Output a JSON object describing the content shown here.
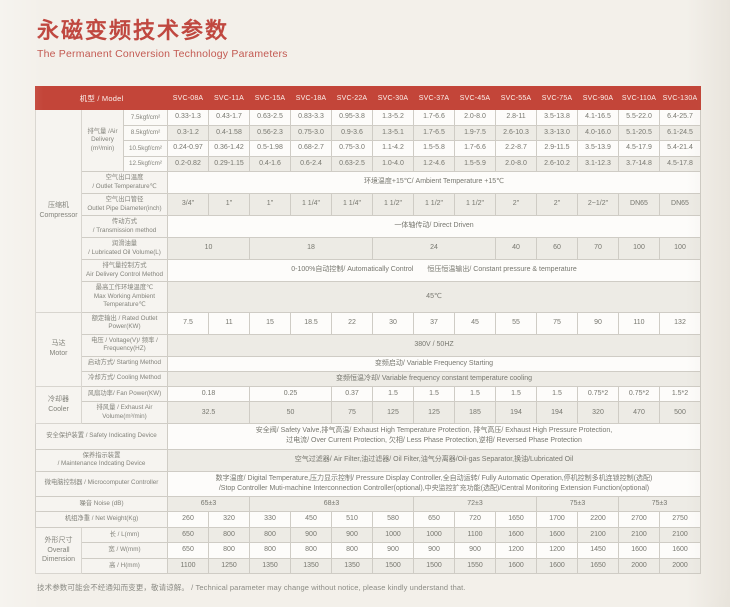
{
  "page": {
    "title_zh": "永磁变频技术参数",
    "title_en": "The Permanent Conversion Technology Parameters",
    "footer": "技术参数可能会不经通知而变更，敬请谅解。 / Technical parameter may change without notice, please kindly understand that."
  },
  "colors": {
    "header_red": "#c34539",
    "title_red": "#c04840",
    "cell_border": "#cfccc5",
    "shaded_row": "#edebe5",
    "page_bg": "#f3f0ea"
  },
  "table": {
    "corner_label": "机型 / Model",
    "models": [
      "SVC-08A",
      "SVC-11A",
      "SVC-15A",
      "SVC-18A",
      "SVC-22A",
      "SVC-30A",
      "SVC-37A",
      "SVC-45A",
      "SVC-55A",
      "SVC-75A",
      "SVC-90A",
      "SVC-110A",
      "SVC-130A"
    ],
    "rows": [
      [
        {
          "t": "压缩机\nCompressor",
          "k": "g",
          "rs": 10
        },
        {
          "t": "排气量 /Air\nDelivery\n(m³/min)",
          "k": "l",
          "rs": 4
        },
        {
          "t": "7.5kgf/cm²",
          "k": "s"
        },
        {
          "t": "0.33-1.3"
        },
        {
          "t": "0.43-1.7"
        },
        {
          "t": "0.63-2.5"
        },
        {
          "t": "0.83-3.3"
        },
        {
          "t": "0.95-3.8"
        },
        {
          "t": "1.3-5.2"
        },
        {
          "t": "1.7-6.6"
        },
        {
          "t": "2.0-8.0"
        },
        {
          "t": "2.8-11"
        },
        {
          "t": "3.5-13.8"
        },
        {
          "t": "4.1-16.5"
        },
        {
          "t": "5.5-22.0"
        },
        {
          "t": "6.4-25.7"
        }
      ],
      [
        {
          "t": "8.5kgf/cm²",
          "k": "s"
        },
        {
          "t": "0.3-1.2"
        },
        {
          "t": "0.4-1.58"
        },
        {
          "t": "0.56-2.3"
        },
        {
          "t": "0.75-3.0"
        },
        {
          "t": "0.9-3.6"
        },
        {
          "t": "1.3-5.1"
        },
        {
          "t": "1.7-6.5"
        },
        {
          "t": "1.9-7.5"
        },
        {
          "t": "2.6-10.3"
        },
        {
          "t": "3.3-13.0"
        },
        {
          "t": "4.0-16.0"
        },
        {
          "t": "5.1-20.5"
        },
        {
          "t": "6.1-24.5"
        }
      ],
      [
        {
          "t": "10.5kgf/cm²",
          "k": "s"
        },
        {
          "t": "0.24-0.97"
        },
        {
          "t": "0.36-1.42"
        },
        {
          "t": "0.5-1.98"
        },
        {
          "t": "0.68-2.7"
        },
        {
          "t": "0.75-3.0"
        },
        {
          "t": "1.1-4.2"
        },
        {
          "t": "1.5-5.8"
        },
        {
          "t": "1.7-6.6"
        },
        {
          "t": "2.2-8.7"
        },
        {
          "t": "2.9-11.5"
        },
        {
          "t": "3.5-13.9"
        },
        {
          "t": "4.5-17.9"
        },
        {
          "t": "5.4-21.4"
        }
      ],
      [
        {
          "t": "12.5kgf/cm²",
          "k": "s"
        },
        {
          "t": "0.2-0.82"
        },
        {
          "t": "0.29-1.15"
        },
        {
          "t": "0.4-1.6"
        },
        {
          "t": "0.6-2.4"
        },
        {
          "t": "0.63-2.5"
        },
        {
          "t": "1.0-4.0"
        },
        {
          "t": "1.2-4.6"
        },
        {
          "t": "1.5-5.9"
        },
        {
          "t": "2.0-8.0"
        },
        {
          "t": "2.6-10.2"
        },
        {
          "t": "3.1-12.3"
        },
        {
          "t": "3.7-14.8"
        },
        {
          "t": "4.5-17.8"
        }
      ],
      [
        {
          "t": "空气出口温度\n/ Outlet Temperature℃",
          "k": "l",
          "cs": 2
        },
        {
          "t": "环境温度+15℃/ Ambient Temperature +15℃",
          "k": "w",
          "cs": 13
        }
      ],
      [
        {
          "t": "空气出口管径\nOutlet Pipe Diameter(inch)",
          "k": "l",
          "cs": 2
        },
        {
          "t": "3/4\""
        },
        {
          "t": "1\""
        },
        {
          "t": "1\""
        },
        {
          "t": "1 1/4\""
        },
        {
          "t": "1 1/4\""
        },
        {
          "t": "1 1/2\""
        },
        {
          "t": "1 1/2\""
        },
        {
          "t": "1 1/2\""
        },
        {
          "t": "2\""
        },
        {
          "t": "2\""
        },
        {
          "t": "2~1/2\""
        },
        {
          "t": "DN65"
        },
        {
          "t": "DN65"
        }
      ],
      [
        {
          "t": "传动方式\n/ Transmission method",
          "k": "l",
          "cs": 2
        },
        {
          "t": "一体轴传动/ Direct Driven",
          "k": "w",
          "cs": 13
        }
      ],
      [
        {
          "t": "润滑油量\n/ Lubricated Oil Volume(L)",
          "k": "l",
          "cs": 2
        },
        {
          "t": "10",
          "cs": 2
        },
        {
          "t": "18",
          "cs": 3
        },
        {
          "t": "24",
          "cs": 3
        },
        {
          "t": "40"
        },
        {
          "t": "60"
        },
        {
          "t": "70"
        },
        {
          "t": "100"
        },
        {
          "t": "100"
        }
      ],
      [
        {
          "t": "排气量控制方式\nAir Delivery Control Method",
          "k": "l",
          "cs": 2
        },
        {
          "t": "0-100%自动控制/ Automatically Control　　恒压恒温输出/ Constant pressure & temperature",
          "k": "w",
          "cs": 13
        }
      ],
      [
        {
          "t": "最高工作环境温度℃\nMax Working Ambient\nTemperature℃",
          "k": "l",
          "cs": 2
        },
        {
          "t": "45℃",
          "k": "w",
          "cs": 13
        }
      ],
      [
        {
          "t": "马达\nMotor",
          "k": "g",
          "rs": 4
        },
        {
          "t": "额定输出 / Rated Outlet\nPower(KW)",
          "k": "l",
          "cs": 2
        },
        {
          "t": "7.5"
        },
        {
          "t": "11"
        },
        {
          "t": "15"
        },
        {
          "t": "18.5"
        },
        {
          "t": "22"
        },
        {
          "t": "30"
        },
        {
          "t": "37"
        },
        {
          "t": "45"
        },
        {
          "t": "55"
        },
        {
          "t": "75"
        },
        {
          "t": "90"
        },
        {
          "t": "110"
        },
        {
          "t": "132"
        }
      ],
      [
        {
          "t": "电压 / Voltage(V)/ 频率 /\nFrequency(HZ)",
          "k": "l",
          "cs": 2
        },
        {
          "t": "380V / 50HZ",
          "k": "w",
          "cs": 13
        }
      ],
      [
        {
          "t": "启动方式/ Starting Method",
          "k": "l",
          "cs": 2
        },
        {
          "t": "变频启动/ Variable Frequency Starting",
          "k": "w",
          "cs": 13
        }
      ],
      [
        {
          "t": "冷却方式/ Cooling Method",
          "k": "l",
          "cs": 2
        },
        {
          "t": "变频恒温冷却/ Variable frequency constant temperature cooling",
          "k": "w",
          "cs": 13
        }
      ],
      [
        {
          "t": "冷却器\nCooler",
          "k": "g",
          "rs": 2
        },
        {
          "t": "风扇功率/ Fan Power(KW)",
          "k": "l",
          "cs": 2
        },
        {
          "t": "0.18",
          "cs": 2
        },
        {
          "t": "0.25",
          "cs": 2
        },
        {
          "t": "0.37"
        },
        {
          "t": "1.5"
        },
        {
          "t": "1.5"
        },
        {
          "t": "1.5"
        },
        {
          "t": "1.5"
        },
        {
          "t": "1.5"
        },
        {
          "t": "0.75*2"
        },
        {
          "t": "0.75*2"
        },
        {
          "t": "1.5*2"
        }
      ],
      [
        {
          "t": "排风量 / Exhaust Air\nVolume(m³/min)",
          "k": "l",
          "cs": 2
        },
        {
          "t": "32.5",
          "cs": 2
        },
        {
          "t": "50",
          "cs": 2
        },
        {
          "t": "75"
        },
        {
          "t": "125"
        },
        {
          "t": "125"
        },
        {
          "t": "185"
        },
        {
          "t": "194"
        },
        {
          "t": "194"
        },
        {
          "t": "320"
        },
        {
          "t": "470"
        },
        {
          "t": "500"
        }
      ],
      [
        {
          "t": "安全保护装置 / Safety Indicating Device",
          "k": "l",
          "cs": 3
        },
        {
          "t": "安全阀/ Safety Valve,排气高温/ Exhaust High Temperature Protection, 排气高压/ Exhaust High Pressure Protection,\n过电流/ Over Current Protection, 欠相/ Less Phase Protection,逆相/ Reversed Phase Protection",
          "k": "w",
          "cs": 13
        }
      ],
      [
        {
          "t": "保养指示装置\n/ Maintenance Indcating Device",
          "k": "l",
          "cs": 3
        },
        {
          "t": "空气过滤器/ Air Filter,油过滤器/ Oil Filter,油气分离器/Oil-gas Separator,换油/Lubricated Oil",
          "k": "w",
          "cs": 13
        }
      ],
      [
        {
          "t": "微电脑控制器 / Microcomputer Controller",
          "k": "l",
          "cs": 3
        },
        {
          "t": "数字温度/ Digital Temperature,压力显示控制/ Pressure Display Controller,全自动运转/ Fully Automatic Operation,停机控制多机连锁控制(选配)\n/Stop Controller Muti-machine Interconnection Controller(optional),中央监控扩充功能(选配)/Central Monitoring Extension Function(optional)",
          "k": "w",
          "cs": 13
        }
      ],
      [
        {
          "t": "噪音 Noise (dB)",
          "k": "l",
          "cs": 3
        },
        {
          "t": "65±3",
          "cs": 2
        },
        {
          "t": "68±3",
          "cs": 4
        },
        {
          "t": "72±3",
          "cs": 3
        },
        {
          "t": "75±3",
          "cs": 2
        },
        {
          "t": "75±3",
          "cs": 2
        }
      ],
      [
        {
          "t": "机组净重 / Net Weight(Kg)",
          "k": "l",
          "cs": 3
        },
        {
          "t": "260"
        },
        {
          "t": "320"
        },
        {
          "t": "330"
        },
        {
          "t": "450"
        },
        {
          "t": "510"
        },
        {
          "t": "580"
        },
        {
          "t": "650"
        },
        {
          "t": "720"
        },
        {
          "t": "1650"
        },
        {
          "t": "1700"
        },
        {
          "t": "2200"
        },
        {
          "t": "2700"
        },
        {
          "t": "2750"
        }
      ],
      [
        {
          "t": "外形尺寸\nOverall\nDimension",
          "k": "g",
          "rs": 3
        },
        {
          "t": "长 / L(mm)",
          "k": "l",
          "cs": 2
        },
        {
          "t": "650"
        },
        {
          "t": "800"
        },
        {
          "t": "800"
        },
        {
          "t": "900"
        },
        {
          "t": "900"
        },
        {
          "t": "1000"
        },
        {
          "t": "1000"
        },
        {
          "t": "1100"
        },
        {
          "t": "1600"
        },
        {
          "t": "1600"
        },
        {
          "t": "2100"
        },
        {
          "t": "2100"
        },
        {
          "t": "2100"
        }
      ],
      [
        {
          "t": "宽 / W(mm)",
          "k": "l",
          "cs": 2
        },
        {
          "t": "650"
        },
        {
          "t": "800"
        },
        {
          "t": "800"
        },
        {
          "t": "800"
        },
        {
          "t": "800"
        },
        {
          "t": "900"
        },
        {
          "t": "900"
        },
        {
          "t": "900"
        },
        {
          "t": "1200"
        },
        {
          "t": "1200"
        },
        {
          "t": "1450"
        },
        {
          "t": "1600"
        },
        {
          "t": "1600"
        }
      ],
      [
        {
          "t": "高 / H(mm)",
          "k": "l",
          "cs": 2
        },
        {
          "t": "1100"
        },
        {
          "t": "1250"
        },
        {
          "t": "1350"
        },
        {
          "t": "1350"
        },
        {
          "t": "1350"
        },
        {
          "t": "1500"
        },
        {
          "t": "1500"
        },
        {
          "t": "1550"
        },
        {
          "t": "1600"
        },
        {
          "t": "1600"
        },
        {
          "t": "1650"
        },
        {
          "t": "2000"
        },
        {
          "t": "2000"
        }
      ]
    ]
  }
}
